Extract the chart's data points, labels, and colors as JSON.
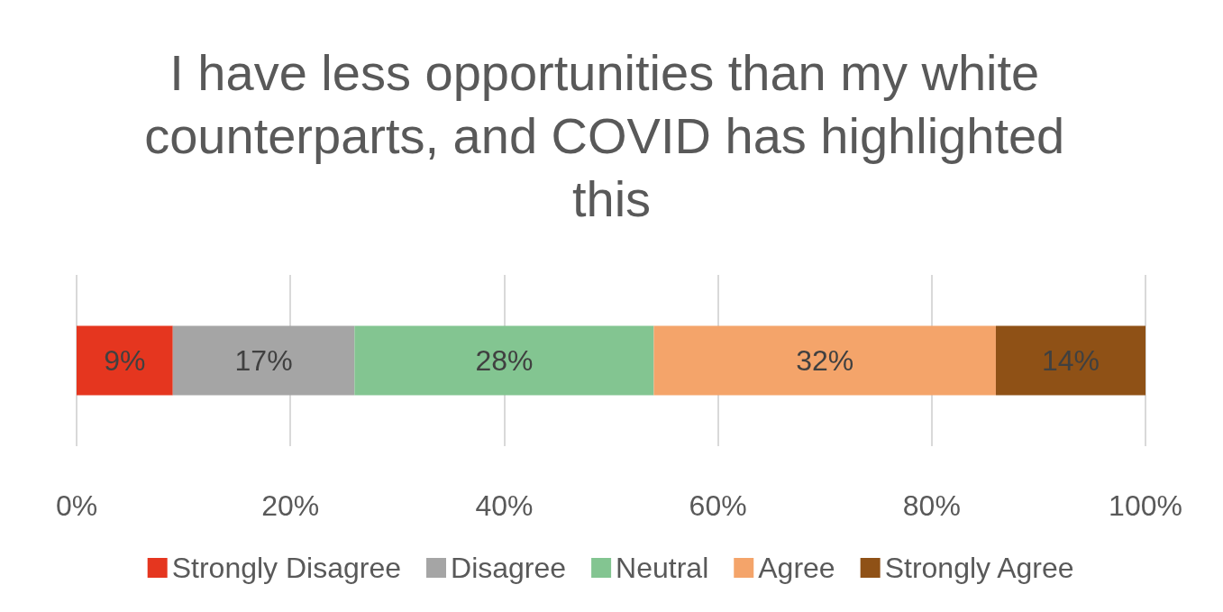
{
  "chart_data": {
    "type": "bar",
    "orientation": "horizontal",
    "stacked": true,
    "title": "I have less opportunities than my white counterparts, and COVID has highlighted this",
    "categories": [
      null
    ],
    "series": [
      {
        "name": "Strongly Disagree",
        "color": "#e5361f",
        "values": [
          9
        ],
        "value_labels": [
          "9%"
        ]
      },
      {
        "name": "Disagree",
        "color": "#a5a5a5",
        "values": [
          17
        ],
        "value_labels": [
          "17%"
        ]
      },
      {
        "name": "Neutral",
        "color": "#83c591",
        "values": [
          28
        ],
        "value_labels": [
          "28%"
        ]
      },
      {
        "name": "Agree",
        "color": "#f4a46a",
        "values": [
          32
        ],
        "value_labels": [
          "32%"
        ]
      },
      {
        "name": "Strongly Agree",
        "color": "#8f5116",
        "values": [
          14
        ],
        "value_labels": [
          "14%"
        ]
      }
    ],
    "xlim": [
      0,
      100
    ],
    "xticks": [
      {
        "value": 0,
        "label": "0%"
      },
      {
        "value": 20,
        "label": "20%"
      },
      {
        "value": 40,
        "label": "40%"
      },
      {
        "value": 60,
        "label": "60%"
      },
      {
        "value": 80,
        "label": "80%"
      },
      {
        "value": 100,
        "label": "100%"
      }
    ],
    "grid": "x",
    "legend": "bottom"
  }
}
